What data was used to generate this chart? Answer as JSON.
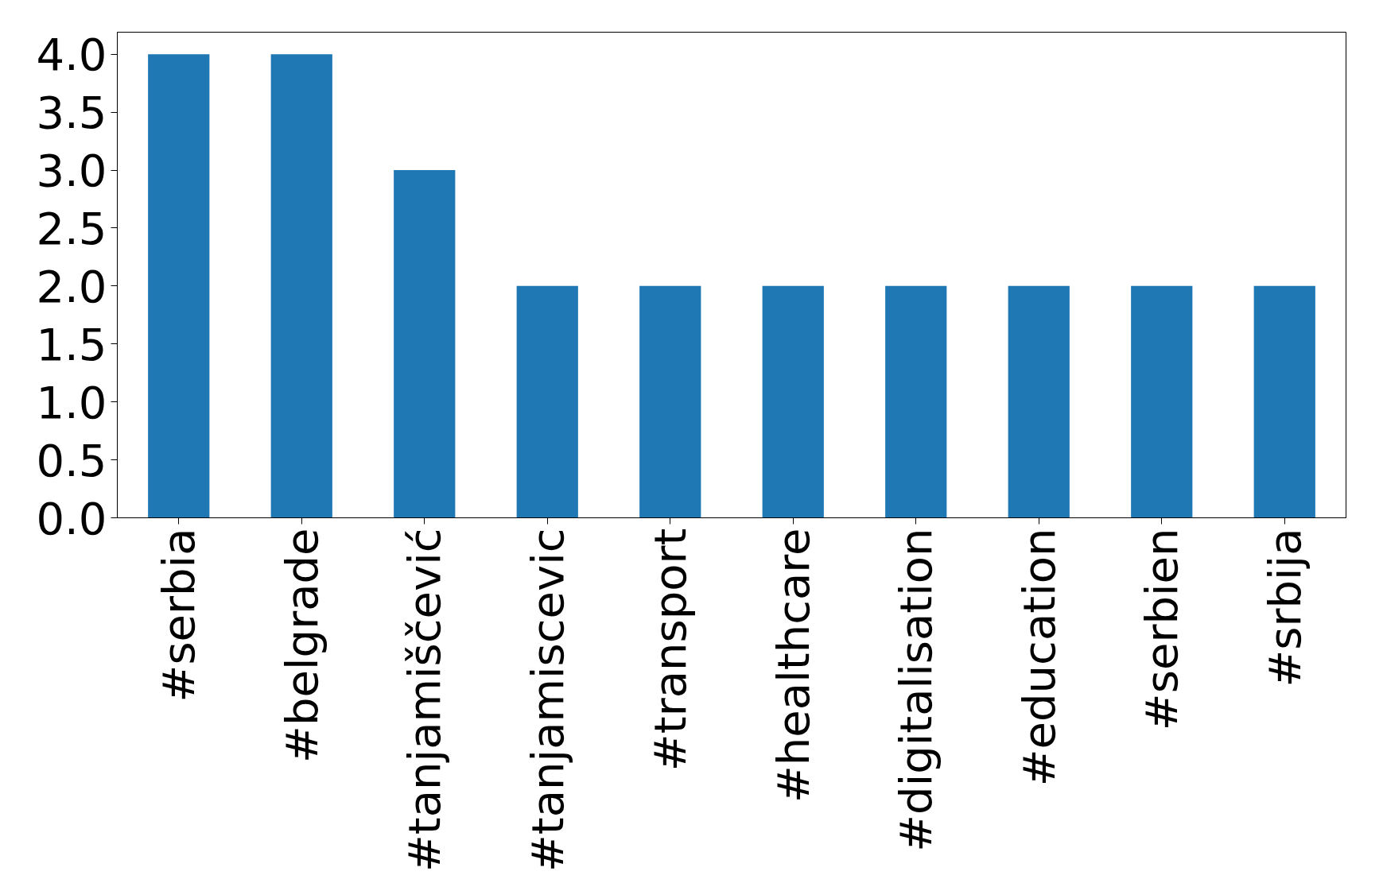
{
  "chart_data": {
    "type": "bar",
    "categories": [
      "#serbia",
      "#belgrade",
      "#tanjamiščević",
      "#tanjamiscevic",
      "#transport",
      "#healthcare",
      "#digitalisation",
      "#education",
      "#serbien",
      "#srbija"
    ],
    "values": [
      4,
      4,
      3,
      2,
      2,
      2,
      2,
      2,
      2,
      2
    ],
    "color": "#1f77b4",
    "ylim": [
      0,
      4.19
    ],
    "yticks": [
      {
        "value": 0,
        "label": "0.0"
      },
      {
        "value": 0.5,
        "label": "0.5"
      },
      {
        "value": 1,
        "label": "1.0"
      },
      {
        "value": 1.5,
        "label": "1.5"
      },
      {
        "value": 2,
        "label": "2.0"
      },
      {
        "value": 2.5,
        "label": "2.5"
      },
      {
        "value": 3,
        "label": "3.0"
      },
      {
        "value": 3.5,
        "label": "3.5"
      },
      {
        "value": 4,
        "label": "4.0"
      }
    ],
    "grid": false
  }
}
